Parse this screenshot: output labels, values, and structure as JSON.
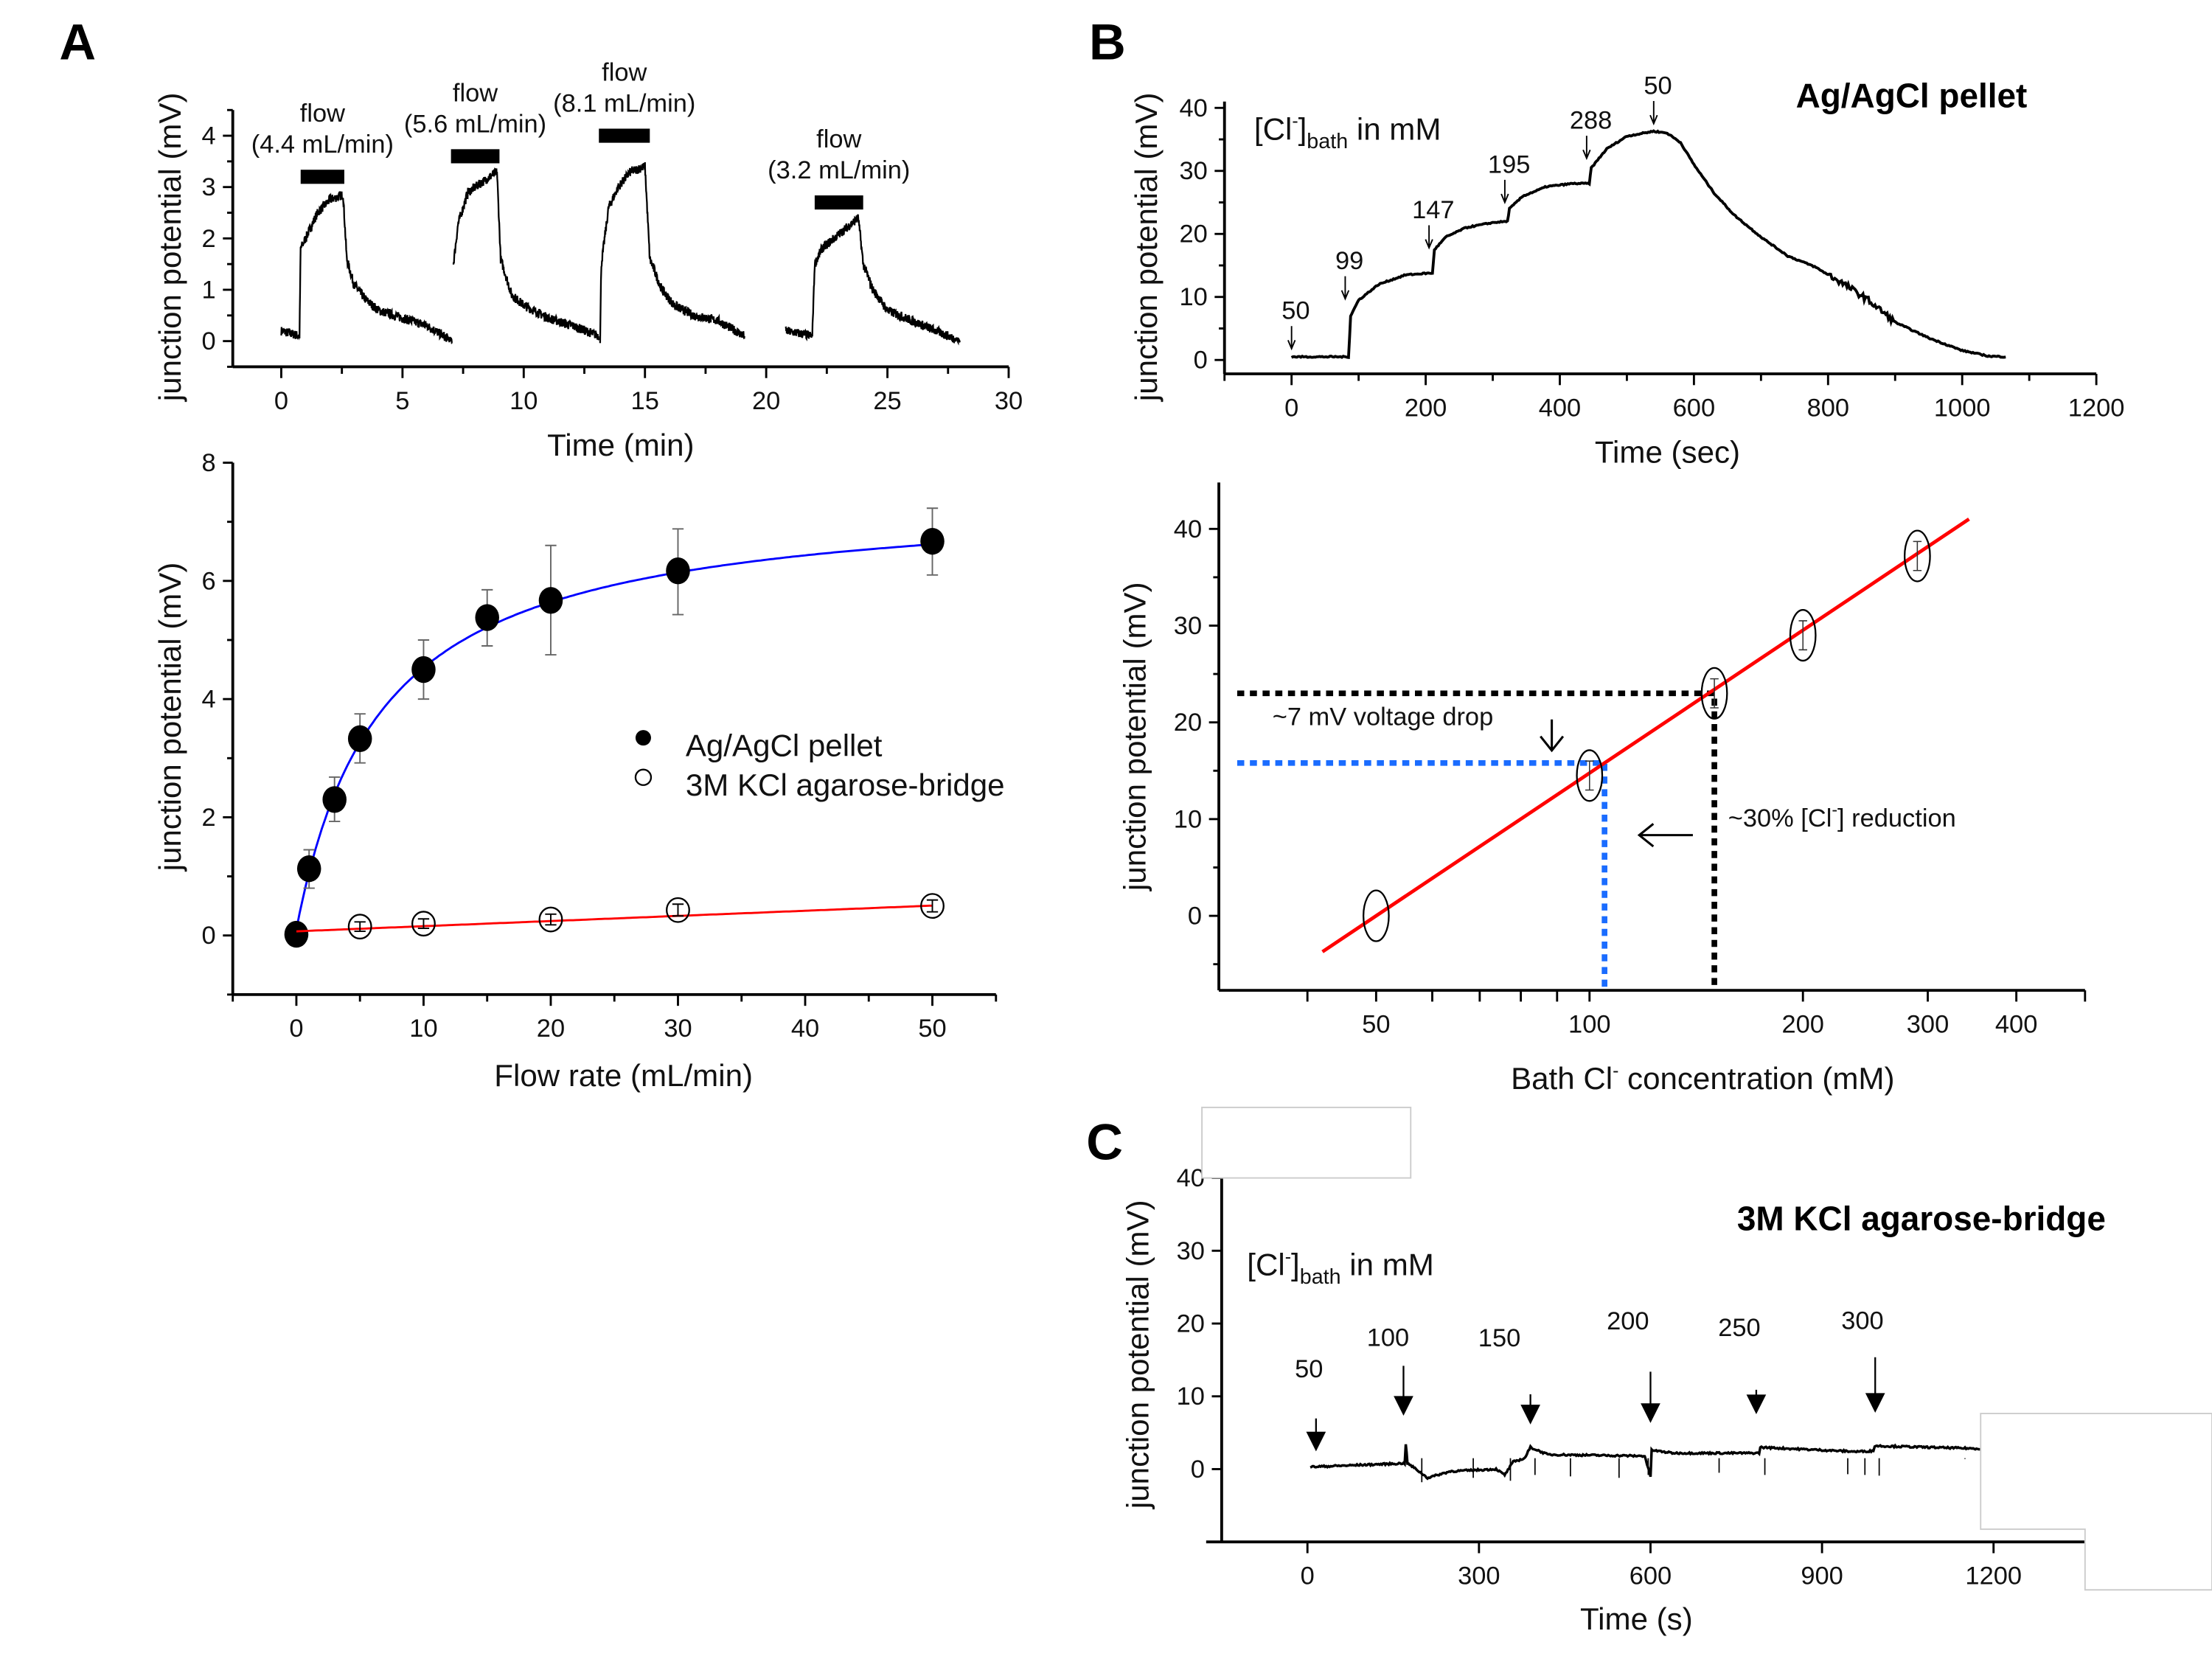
{
  "panels": {
    "A": "A",
    "B": "B",
    "C": "C"
  },
  "chart_data": [
    {
      "panel": "A-top",
      "type": "line",
      "xlabel": "Time (min)",
      "ylabel": "junction potential (mV)",
      "xlim": [
        -2,
        30
      ],
      "ylim": [
        -0.5,
        4.5
      ],
      "x_ticks": [
        0,
        5,
        10,
        15,
        20,
        25,
        30
      ],
      "y_ticks": [
        0,
        1,
        2,
        3,
        4
      ],
      "trace_segments": [
        [
          [
            0,
            0.2
          ],
          [
            0.75,
            0.1
          ],
          [
            0.8,
            1.8
          ],
          [
            1.0,
            2.0
          ],
          [
            1.5,
            2.5
          ],
          [
            2.0,
            2.75
          ],
          [
            2.55,
            2.85
          ],
          [
            2.7,
            1.6
          ],
          [
            3.0,
            1.1
          ],
          [
            3.5,
            0.8
          ],
          [
            4.0,
            0.6
          ],
          [
            5,
            0.45
          ],
          [
            6,
            0.3
          ],
          [
            7.05,
            0.0
          ]
        ],
        [
          [
            7.1,
            1.5
          ],
          [
            7.3,
            2.3
          ],
          [
            7.7,
            2.9
          ],
          [
            8.3,
            3.1
          ],
          [
            8.9,
            3.3
          ],
          [
            9.05,
            1.6
          ],
          [
            9.5,
            0.9
          ],
          [
            10,
            0.7
          ],
          [
            11,
            0.45
          ],
          [
            12,
            0.3
          ],
          [
            13.1,
            0.1
          ]
        ],
        [
          [
            13.15,
            0.0
          ],
          [
            13.2,
            1.5
          ],
          [
            13.5,
            2.6
          ],
          [
            13.9,
            3.0
          ],
          [
            14.4,
            3.3
          ],
          [
            15.0,
            3.4
          ],
          [
            15.2,
            1.6
          ],
          [
            15.7,
            1.0
          ],
          [
            16.2,
            0.7
          ],
          [
            17,
            0.5
          ],
          [
            18,
            0.4
          ],
          [
            19.1,
            0.1
          ]
        ],
        [
          [
            20.8,
            0.2
          ],
          [
            21.9,
            0.1
          ],
          [
            22.0,
            1.5
          ],
          [
            22.3,
            1.8
          ],
          [
            22.8,
            2.0
          ],
          [
            23.3,
            2.2
          ],
          [
            23.8,
            2.4
          ],
          [
            24.0,
            1.5
          ],
          [
            24.4,
            1.0
          ],
          [
            25,
            0.6
          ],
          [
            26,
            0.4
          ],
          [
            27,
            0.2
          ],
          [
            28,
            0.0
          ]
        ]
      ],
      "flow_periods": [
        {
          "label": "flow",
          "rate": "(4.4 mL/min)",
          "start": 0.8,
          "end": 2.6,
          "level": 3.2
        },
        {
          "label": "flow",
          "rate": "(5.6 mL/min)",
          "start": 7.0,
          "end": 9.0,
          "level": 3.6
        },
        {
          "label": "flow",
          "rate": "(8.1 mL/min)",
          "start": 13.1,
          "end": 15.2,
          "level": 4.0
        },
        {
          "label": "flow",
          "rate": "(3.2 mL/min)",
          "start": 22.0,
          "end": 24.0,
          "level": 2.7
        }
      ]
    },
    {
      "panel": "A-bottom",
      "type": "scatter",
      "xlabel": "Flow rate (mL/min)",
      "ylabel": "junction potential (mV)",
      "xlim": [
        -5,
        55
      ],
      "ylim": [
        -1,
        8
      ],
      "x_ticks": [
        0,
        10,
        20,
        30,
        40,
        50
      ],
      "y_ticks": [
        0,
        2,
        4,
        6,
        8
      ],
      "legend_position": "center-right",
      "series": [
        {
          "name": "Ag/AgCl pellet",
          "marker": "filled-circle",
          "fit_color": "#0000ff",
          "x": [
            0,
            1,
            3,
            5,
            10,
            15,
            20,
            30,
            50
          ],
          "y": [
            0.02,
            1.13,
            2.3,
            3.33,
            4.5,
            5.38,
            5.67,
            6.17,
            6.67
          ],
          "err_low": [
            0.02,
            0.8,
            1.93,
            2.92,
            4.0,
            4.9,
            4.75,
            5.43,
            6.1
          ],
          "err_high": [
            0.02,
            1.45,
            2.68,
            3.75,
            5.0,
            5.85,
            6.6,
            6.88,
            7.23
          ],
          "fit": {
            "model": "hyperbolic",
            "vmax": 7.5,
            "k": 6.67,
            "x_range": [
              0,
              50
            ]
          }
        },
        {
          "name": "3M KCl agarose-bridge",
          "marker": "open-circle",
          "fit_color": "#ff0000",
          "x": [
            5,
            10,
            20,
            30,
            50
          ],
          "y": [
            0.15,
            0.2,
            0.27,
            0.43,
            0.5
          ],
          "err_low": [
            0.07,
            0.12,
            0.18,
            0.33,
            0.4
          ],
          "err_high": [
            0.23,
            0.28,
            0.36,
            0.53,
            0.6
          ],
          "fit": {
            "model": "linear",
            "intercept": 0.07,
            "slope": 0.0087,
            "x_range": [
              0,
              50
            ]
          }
        }
      ]
    },
    {
      "panel": "B-top",
      "type": "line",
      "title": "Ag/AgCl pellet",
      "xlabel": "Time (sec)",
      "ylabel": "junction potential (mV)",
      "xlim": [
        -100,
        1200
      ],
      "ylim": [
        -2.2,
        41
      ],
      "x_ticks": [
        0,
        200,
        400,
        600,
        800,
        1000,
        1200
      ],
      "y_ticks": [
        0,
        10,
        20,
        30,
        40
      ],
      "conc_label": {
        "prefix": "[Cl",
        "sup": "-",
        "close": "]",
        "sub": "bath",
        "suffix": " in mM"
      },
      "trace": [
        [
          0,
          0.5
        ],
        [
          85,
          0.5
        ],
        [
          88,
          7
        ],
        [
          100,
          9.5
        ],
        [
          130,
          12
        ],
        [
          170,
          13.5
        ],
        [
          208,
          13.8
        ],
        [
          210,
          13.7
        ],
        [
          213,
          17.5
        ],
        [
          230,
          19.5
        ],
        [
          260,
          21
        ],
        [
          300,
          21.8
        ],
        [
          322,
          22
        ],
        [
          325,
          24
        ],
        [
          345,
          26
        ],
        [
          380,
          27.5
        ],
        [
          420,
          28
        ],
        [
          444,
          28
        ],
        [
          447,
          30.5
        ],
        [
          470,
          33.5
        ],
        [
          500,
          35.5
        ],
        [
          540,
          36.3
        ],
        [
          560,
          36
        ],
        [
          580,
          34.5
        ],
        [
          600,
          31
        ],
        [
          630,
          26.5
        ],
        [
          660,
          23
        ],
        [
          700,
          19.5
        ],
        [
          740,
          16.5
        ],
        [
          780,
          14.8
        ],
        [
          820,
          12.3
        ],
        [
          860,
          9.5
        ],
        [
          900,
          6
        ],
        [
          950,
          3.5
        ],
        [
          1000,
          1.5
        ],
        [
          1040,
          0.6
        ],
        [
          1065,
          0.5
        ]
      ],
      "annotations": [
        {
          "label": "50",
          "t": 0,
          "v": 1.8
        },
        {
          "label": "99",
          "t": 80,
          "v": 9.7
        },
        {
          "label": "147",
          "t": 205,
          "v": 17.8
        },
        {
          "label": "195",
          "t": 318,
          "v": 25
        },
        {
          "label": "288",
          "t": 440,
          "v": 32
        },
        {
          "label": "50",
          "t": 540,
          "v": 37.5
        }
      ]
    },
    {
      "panel": "B-bottom",
      "type": "scatter",
      "xlabel": {
        "prefix": "Bath Cl",
        "sup": "-",
        "suffix": " concentration (mM)"
      },
      "ylabel": "junction potential (mV)",
      "x_scale": "log",
      "xlim": [
        30,
        500
      ],
      "ylim": [
        -7.7,
        44.8
      ],
      "x_ticks": [
        50,
        100,
        200,
        300,
        400
      ],
      "x_minor_ticks": [
        40,
        60,
        70,
        80,
        90
      ],
      "y_ticks": [
        0,
        10,
        20,
        30,
        40
      ],
      "fit_color": "#ff0000",
      "points": {
        "x": [
          50,
          100,
          150,
          200,
          290
        ],
        "y": [
          0,
          14.5,
          23,
          29,
          37.2
        ],
        "yerr": [
          0,
          1.5,
          1.5,
          1.5,
          1.5
        ]
      },
      "fit": {
        "model": "log-linear",
        "a_at_50": 0,
        "slope_per_ln": 21.3,
        "x_range": [
          42,
          343
        ]
      },
      "guides": [
        {
          "color": "#000000",
          "x": 150,
          "y": 23
        },
        {
          "color": "#1a6cff",
          "x": 105,
          "y": 15.8
        }
      ],
      "annotations": {
        "drop": "~7 mV voltage drop",
        "reduction": {
          "prefix": "~30%  [Cl",
          "sup": "-",
          "suffix": "] reduction"
        }
      }
    },
    {
      "panel": "C",
      "type": "line",
      "title": "3M KCl agarose-bridge",
      "xlabel": "Time (s)",
      "ylabel": "junction potential (mV)",
      "xlim": [
        -150,
        1360
      ],
      "ylim": [
        -10,
        40
      ],
      "x_ticks": [
        0,
        300,
        600,
        900,
        1200
      ],
      "y_ticks": [
        0,
        10,
        20,
        30,
        40
      ],
      "conc_label": {
        "prefix": "[Cl",
        "sup": "-",
        "close": "]",
        "sub": "bath",
        "suffix": " in mM"
      },
      "trace": [
        [
          5,
          0.3
        ],
        [
          170,
          0.8
        ],
        [
          172,
          3.5
        ],
        [
          175,
          0.8
        ],
        [
          190,
          0
        ],
        [
          210,
          -1.2
        ],
        [
          250,
          -0.3
        ],
        [
          330,
          0
        ],
        [
          345,
          -0.8
        ],
        [
          360,
          1
        ],
        [
          380,
          1.5
        ],
        [
          390,
          3
        ],
        [
          420,
          2
        ],
        [
          590,
          1.8
        ],
        [
          600,
          -1
        ],
        [
          602,
          2.6
        ],
        [
          640,
          2.2
        ],
        [
          790,
          2.2
        ],
        [
          792,
          3
        ],
        [
          960,
          2.4
        ],
        [
          990,
          2.5
        ],
        [
          992,
          3.2
        ],
        [
          1180,
          2.8
        ]
      ],
      "spikes": [
        [
          200,
          -1.8
        ],
        [
          290,
          -1.2
        ],
        [
          355,
          -1.6
        ],
        [
          398,
          -0.8
        ],
        [
          460,
          -1.0
        ],
        [
          545,
          -1.2
        ],
        [
          596,
          -0.8
        ],
        [
          720,
          -0.5
        ],
        [
          800,
          -0.8
        ],
        [
          945,
          -0.7
        ],
        [
          975,
          -0.8
        ],
        [
          1000,
          -0.9
        ],
        [
          1150,
          1.4
        ]
      ],
      "annotations": [
        {
          "label": "50",
          "t": 15,
          "v": 2.7
        },
        {
          "label": "100",
          "t": 168,
          "v": 7.6
        },
        {
          "label": "150",
          "t": 390,
          "v": 6.4
        },
        {
          "label": "200",
          "t": 600,
          "v": 6.6
        },
        {
          "label": "250",
          "t": 785,
          "v": 7.8
        },
        {
          "label": "300",
          "t": 993,
          "v": 8.0
        }
      ]
    }
  ]
}
